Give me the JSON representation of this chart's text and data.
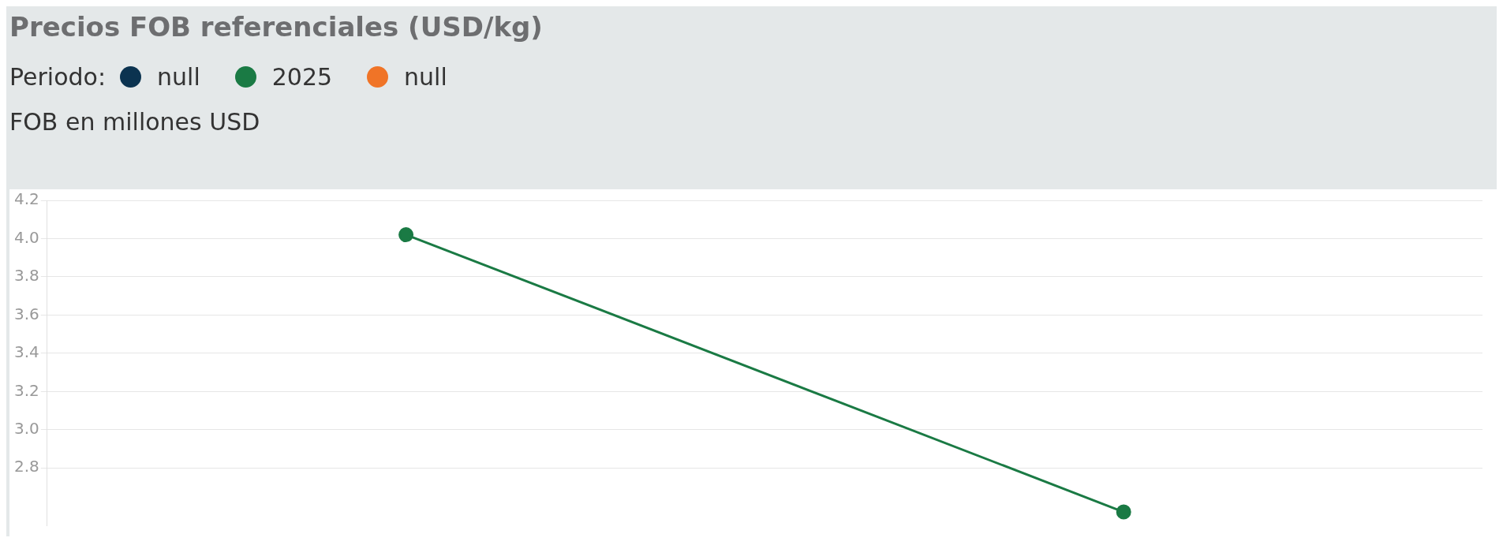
{
  "chart_data": {
    "type": "line",
    "title": "Precios FOB referenciales (USD/kg)",
    "subtitle": "FOB en millones USD",
    "legend_title": "Periodo:",
    "legend": "top left",
    "categories": [
      null,
      null
    ],
    "series": [
      {
        "name": "null",
        "color": "#0b3350",
        "values": [
          null,
          null
        ]
      },
      {
        "name": "2025",
        "color": "#1a7a44",
        "values": [
          4.02,
          2.57
        ]
      },
      {
        "name": "null",
        "color": "#f07427",
        "values": [
          null,
          null
        ]
      }
    ],
    "ylim": [
      2.5,
      4.2
    ],
    "yticks": [
      2.8,
      {
        "value": 3,
        "label": "3.0"
      },
      3.2,
      3.4,
      3.6,
      3.8,
      {
        "value": 4,
        "label": "4.0"
      },
      4.2
    ],
    "grid": "y",
    "tick_labels": "y",
    "marker": "circle",
    "line_style": "solid"
  }
}
